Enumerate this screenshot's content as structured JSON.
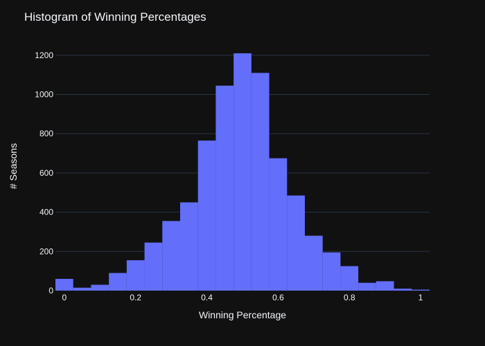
{
  "chart_data": {
    "type": "bar",
    "title": "Histogram of Winning Percentages",
    "xlabel": "Winning Percentage",
    "ylabel": "# Seasons",
    "xlim": [
      -0.025,
      1.025
    ],
    "ylim": [
      0,
      1270
    ],
    "x_ticks": [
      0,
      0.2,
      0.4,
      0.6,
      0.8,
      1
    ],
    "x_tick_labels": [
      "0",
      "0.2",
      "0.4",
      "0.6",
      "0.8",
      "1"
    ],
    "y_ticks": [
      0,
      200,
      400,
      600,
      800,
      1000,
      1200
    ],
    "y_tick_labels": [
      "0",
      "200",
      "400",
      "600",
      "800",
      "1000",
      "1200"
    ],
    "grid": true,
    "bin_width": 0.05,
    "bin_centers": [
      0,
      0.05,
      0.1,
      0.15,
      0.2,
      0.25,
      0.3,
      0.35,
      0.4,
      0.45,
      0.5,
      0.55,
      0.6,
      0.65,
      0.7,
      0.75,
      0.8,
      0.85,
      0.9,
      0.95,
      1
    ],
    "values": [
      60,
      15,
      30,
      90,
      155,
      245,
      355,
      450,
      765,
      1045,
      1210,
      1110,
      675,
      485,
      280,
      195,
      125,
      40,
      48,
      10,
      5
    ],
    "colors": {
      "background": "#111111",
      "bar": "#636efa",
      "grid": "#283442",
      "text": "#f2f5fa"
    }
  }
}
